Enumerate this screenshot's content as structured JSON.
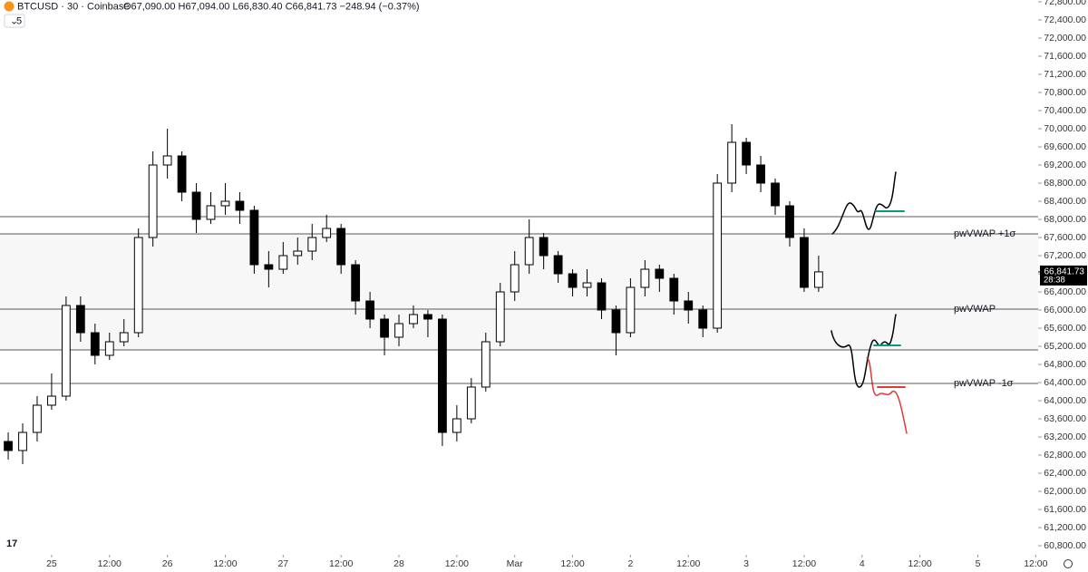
{
  "chart_data": {
    "type": "candlestick",
    "title": "BTCUSD · 30 · Coinbase",
    "ohlc_label": "O67,090.00 H67,094.00 L66,830.40 C66,841.73 −248.94 (−0.37%)",
    "interval_button": "5",
    "up_color": "#ffffff",
    "down_color": "#000000",
    "x": [
      -9,
      -6,
      -3,
      0,
      3,
      6,
      9,
      12,
      15,
      18,
      21,
      24,
      27,
      30,
      33,
      36,
      39,
      42,
      45,
      48,
      51,
      54,
      57,
      60,
      63,
      66,
      69,
      72,
      75,
      78,
      81,
      84,
      87,
      90,
      93,
      96,
      99,
      102,
      105,
      108,
      111,
      114,
      117,
      120,
      123,
      126,
      129,
      132,
      135,
      138,
      141,
      144,
      147,
      150,
      153,
      156,
      159
    ],
    "open": [
      63100,
      62900,
      63300,
      63900,
      64100,
      66100,
      65500,
      65000,
      65300,
      65500,
      67600,
      69200,
      69400,
      68600,
      68000,
      68300,
      68400,
      68200,
      67000,
      66900,
      67200,
      67300,
      67600,
      67800,
      67000,
      66200,
      65800,
      65400,
      65700,
      65900,
      65800,
      63300,
      63600,
      64300,
      65300,
      66400,
      67000,
      67600,
      67200,
      66800,
      66500,
      66600,
      66000,
      65500,
      66500,
      66900,
      66700,
      66200,
      66000,
      65600,
      68800,
      69700,
      69200,
      68800,
      68300,
      67600,
      66500
    ],
    "high": [
      63300,
      63500,
      64100,
      64600,
      66300,
      66300,
      65700,
      65500,
      65800,
      67800,
      69500,
      70000,
      69500,
      68800,
      68600,
      68800,
      68600,
      68300,
      67300,
      67500,
      67600,
      67900,
      68100,
      67900,
      67100,
      66400,
      65900,
      65900,
      66100,
      66000,
      65900,
      63900,
      64500,
      65500,
      66600,
      67300,
      68000,
      67700,
      67300,
      66900,
      66900,
      66700,
      66100,
      66700,
      67100,
      67000,
      66800,
      66400,
      66100,
      69000,
      70100,
      69800,
      69400,
      68900,
      68400,
      67800,
      67200
    ],
    "low": [
      62700,
      62600,
      63100,
      63800,
      64000,
      65300,
      64800,
      64900,
      65200,
      65400,
      67400,
      68900,
      68400,
      67700,
      67900,
      68100,
      67900,
      66800,
      66500,
      66800,
      67000,
      67100,
      67500,
      66800,
      65900,
      65600,
      65000,
      65200,
      65600,
      65400,
      63000,
      63100,
      63500,
      64200,
      65200,
      66200,
      66800,
      66900,
      66600,
      66300,
      66300,
      65800,
      65000,
      65400,
      66300,
      66400,
      65900,
      65700,
      65400,
      65500,
      68600,
      69000,
      68600,
      68100,
      67400,
      66400,
      66400
    ],
    "close": [
      62900,
      63300,
      63900,
      64100,
      66100,
      65500,
      65000,
      65300,
      65500,
      67600,
      69200,
      69400,
      68600,
      68000,
      68300,
      68400,
      68200,
      67000,
      66900,
      67200,
      67300,
      67600,
      67800,
      67000,
      66200,
      65800,
      65400,
      65700,
      65900,
      65800,
      63300,
      63600,
      64300,
      65300,
      66400,
      67000,
      67600,
      67200,
      66800,
      66500,
      66600,
      66000,
      65500,
      66500,
      66900,
      66700,
      66200,
      66000,
      65600,
      68800,
      69700,
      69200,
      68800,
      68300,
      67600,
      66500,
      66841.73
    ],
    "last_price_label": "66,841.73",
    "countdown": "28:38",
    "levels": [
      {
        "value": 68060
      },
      {
        "value": 67680,
        "label": "pwVWAP +1σ"
      },
      {
        "value": 66020,
        "label": "pwVWAP"
      },
      {
        "value": 65120
      },
      {
        "value": 64380,
        "label": "pwVWAP -1σ"
      }
    ],
    "xlim": [
      -10.7,
      204.5
    ],
    "xticks": [
      {
        "value": 0,
        "label": "25"
      },
      {
        "value": 12,
        "label": "12:00"
      },
      {
        "value": 24,
        "label": "26"
      },
      {
        "value": 36,
        "label": "12:00"
      },
      {
        "value": 48,
        "label": "27"
      },
      {
        "value": 60,
        "label": "12:00"
      },
      {
        "value": 72,
        "label": "28"
      },
      {
        "value": 84,
        "label": "12:00"
      },
      {
        "value": 96,
        "label": "Mar"
      },
      {
        "value": 108,
        "label": "12:00"
      },
      {
        "value": 120,
        "label": "2"
      },
      {
        "value": 132,
        "label": "12:00"
      },
      {
        "value": 144,
        "label": "3"
      },
      {
        "value": 156,
        "label": "12:00"
      },
      {
        "value": 168,
        "label": "4"
      },
      {
        "value": 180,
        "label": "12:00"
      },
      {
        "value": 192,
        "label": "5"
      },
      {
        "value": 204,
        "label": "12:00"
      }
    ],
    "ylim": [
      60600,
      72840
    ],
    "yticks": [
      {
        "value": 60800,
        "label": "60,800.00"
      },
      {
        "value": 61200,
        "label": "61,200.00"
      },
      {
        "value": 61600,
        "label": "61,600.00"
      },
      {
        "value": 62000,
        "label": "62,000.00"
      },
      {
        "value": 62400,
        "label": "62,400.00"
      },
      {
        "value": 62800,
        "label": "62,800.00"
      },
      {
        "value": 63200,
        "label": "63,200.00"
      },
      {
        "value": 63600,
        "label": "63,600.00"
      },
      {
        "value": 64000,
        "label": "64,000.00"
      },
      {
        "value": 64400,
        "label": "64,400.00"
      },
      {
        "value": 64800,
        "label": "64,800.00"
      },
      {
        "value": 65200,
        "label": "65,200.00"
      },
      {
        "value": 65600,
        "label": "65,600.00"
      },
      {
        "value": 66000,
        "label": "66,000.00"
      },
      {
        "value": 66400,
        "label": "66,400.00"
      },
      {
        "value": 66800,
        "label": "66,800.00"
      },
      {
        "value": 67200,
        "label": "67,200.00"
      },
      {
        "value": 67600,
        "label": "67,600.00"
      },
      {
        "value": 68000,
        "label": "68,000.00"
      },
      {
        "value": 68400,
        "label": "68,400.00"
      },
      {
        "value": 68800,
        "label": "68,800.00"
      },
      {
        "value": 69200,
        "label": "69,200.00"
      },
      {
        "value": 69600,
        "label": "69,600.00"
      },
      {
        "value": 70000,
        "label": "70,000.00"
      },
      {
        "value": 70400,
        "label": "70,400.00"
      },
      {
        "value": 70800,
        "label": "70,800.00"
      },
      {
        "value": 71200,
        "label": "71,200.00"
      },
      {
        "value": 71600,
        "label": "71,600.00"
      },
      {
        "value": 72000,
        "label": "72,000.00"
      },
      {
        "value": 72400,
        "label": "72,400.00"
      },
      {
        "value": 72800,
        "label": "72,800.00"
      }
    ]
  }
}
